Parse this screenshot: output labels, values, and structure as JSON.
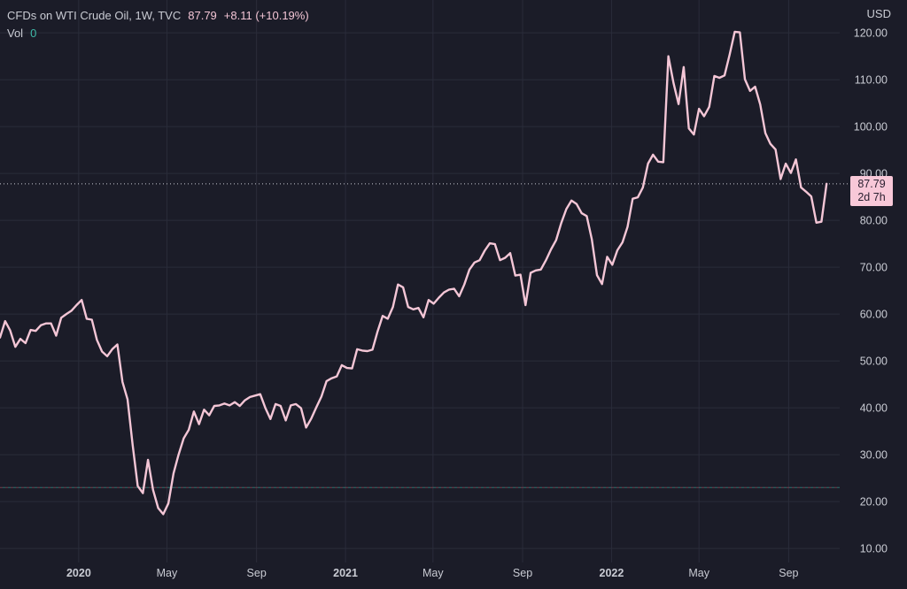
{
  "header": {
    "symbol": "CFDs on WTI Crude Oil, 1W, TVC",
    "price": "87.79",
    "change": "+8.11 (+10.19%)",
    "vol_label": "Vol",
    "vol_value": "0",
    "currency": "USD"
  },
  "price_tag": {
    "price": "87.79",
    "countdown": "2d 7h"
  },
  "colors": {
    "background": "#1b1c28",
    "line": "#f4c6d6",
    "grid": "#2a2c3a",
    "text": "#c9cbd3",
    "volume_marker": "#3fb9a8",
    "tag_bg": "#f8c8d8"
  },
  "chart_data": {
    "type": "line",
    "title": "CFDs on WTI Crude Oil, 1W, TVC",
    "xlabel": "",
    "ylabel": "USD",
    "ylim": [
      7,
      127
    ],
    "grid": true,
    "y_ticks": [
      "10.00",
      "20.00",
      "30.00",
      "40.00",
      "50.00",
      "60.00",
      "70.00",
      "80.00",
      "90.00",
      "100.00",
      "110.00",
      "120.00"
    ],
    "x_ticks": [
      {
        "label": "2020",
        "date": "2020-01-01",
        "bold": true
      },
      {
        "label": "May",
        "date": "2020-05-01",
        "bold": false
      },
      {
        "label": "Sep",
        "date": "2020-09-01",
        "bold": false
      },
      {
        "label": "2021",
        "date": "2021-01-01",
        "bold": true
      },
      {
        "label": "May",
        "date": "2021-05-01",
        "bold": false
      },
      {
        "label": "Sep",
        "date": "2021-09-01",
        "bold": false
      },
      {
        "label": "2022",
        "date": "2022-01-01",
        "bold": true
      },
      {
        "label": "May",
        "date": "2022-05-01",
        "bold": false
      },
      {
        "label": "Sep",
        "date": "2022-09-01",
        "bold": false
      }
    ],
    "x_range": [
      "2019-09-15",
      "2022-11-10"
    ],
    "series": [
      {
        "values": [
          [
            "2019-09-15",
            55.0
          ],
          [
            "2019-09-22",
            58.5
          ],
          [
            "2019-09-29",
            56.5
          ],
          [
            "2019-10-06",
            53.0
          ],
          [
            "2019-10-13",
            54.7
          ],
          [
            "2019-10-20",
            53.8
          ],
          [
            "2019-10-27",
            56.6
          ],
          [
            "2019-11-03",
            56.4
          ],
          [
            "2019-11-10",
            57.6
          ],
          [
            "2019-11-17",
            58.0
          ],
          [
            "2019-11-24",
            58.0
          ],
          [
            "2019-12-01",
            55.4
          ],
          [
            "2019-12-08",
            59.2
          ],
          [
            "2019-12-15",
            60.0
          ],
          [
            "2019-12-22",
            60.7
          ],
          [
            "2019-12-29",
            61.9
          ],
          [
            "2020-01-05",
            63.0
          ],
          [
            "2020-01-12",
            59.0
          ],
          [
            "2020-01-19",
            58.8
          ],
          [
            "2020-01-26",
            54.5
          ],
          [
            "2020-02-02",
            52.0
          ],
          [
            "2020-02-09",
            51.0
          ],
          [
            "2020-02-16",
            52.5
          ],
          [
            "2020-02-23",
            53.5
          ],
          [
            "2020-03-01",
            45.5
          ],
          [
            "2020-03-08",
            41.8
          ],
          [
            "2020-03-15",
            32.0
          ],
          [
            "2020-03-22",
            23.3
          ],
          [
            "2020-03-29",
            21.8
          ],
          [
            "2020-04-05",
            28.9
          ],
          [
            "2020-04-12",
            22.5
          ],
          [
            "2020-04-19",
            18.6
          ],
          [
            "2020-04-26",
            17.3
          ],
          [
            "2020-05-03",
            19.6
          ],
          [
            "2020-05-10",
            26.0
          ],
          [
            "2020-05-17",
            30.0
          ],
          [
            "2020-05-24",
            33.5
          ],
          [
            "2020-05-31",
            35.3
          ],
          [
            "2020-06-07",
            39.2
          ],
          [
            "2020-06-14",
            36.5
          ],
          [
            "2020-06-21",
            39.6
          ],
          [
            "2020-06-28",
            38.4
          ],
          [
            "2020-07-05",
            40.4
          ],
          [
            "2020-07-12",
            40.5
          ],
          [
            "2020-07-19",
            40.9
          ],
          [
            "2020-07-26",
            40.5
          ],
          [
            "2020-08-02",
            41.2
          ],
          [
            "2020-08-09",
            40.4
          ],
          [
            "2020-08-16",
            41.6
          ],
          [
            "2020-08-23",
            42.3
          ],
          [
            "2020-08-30",
            42.6
          ],
          [
            "2020-09-06",
            42.9
          ],
          [
            "2020-09-13",
            40.0
          ],
          [
            "2020-09-20",
            37.6
          ],
          [
            "2020-09-27",
            40.8
          ],
          [
            "2020-10-04",
            40.4
          ],
          [
            "2020-10-11",
            37.3
          ],
          [
            "2020-10-18",
            40.5
          ],
          [
            "2020-10-25",
            40.8
          ],
          [
            "2020-11-01",
            39.9
          ],
          [
            "2020-11-08",
            35.8
          ],
          [
            "2020-11-15",
            37.7
          ],
          [
            "2020-11-22",
            40.1
          ],
          [
            "2020-11-29",
            42.4
          ],
          [
            "2020-12-06",
            45.7
          ],
          [
            "2020-12-13",
            46.3
          ],
          [
            "2020-12-20",
            46.7
          ],
          [
            "2020-12-27",
            49.1
          ],
          [
            "2021-01-03",
            48.5
          ],
          [
            "2021-01-10",
            48.4
          ],
          [
            "2021-01-17",
            52.5
          ],
          [
            "2021-01-24",
            52.2
          ],
          [
            "2021-01-31",
            52.1
          ],
          [
            "2021-02-07",
            52.4
          ],
          [
            "2021-02-14",
            56.3
          ],
          [
            "2021-02-21",
            59.6
          ],
          [
            "2021-02-28",
            59.0
          ],
          [
            "2021-03-07",
            61.5
          ],
          [
            "2021-03-14",
            66.3
          ],
          [
            "2021-03-21",
            65.7
          ],
          [
            "2021-03-28",
            61.5
          ],
          [
            "2021-04-04",
            61.0
          ],
          [
            "2021-04-11",
            61.3
          ],
          [
            "2021-04-18",
            59.3
          ],
          [
            "2021-04-25",
            63.0
          ],
          [
            "2021-05-02",
            62.2
          ],
          [
            "2021-05-09",
            63.5
          ],
          [
            "2021-05-16",
            64.6
          ],
          [
            "2021-05-23",
            65.2
          ],
          [
            "2021-05-30",
            65.4
          ],
          [
            "2021-06-06",
            63.8
          ],
          [
            "2021-06-13",
            66.3
          ],
          [
            "2021-06-20",
            69.5
          ],
          [
            "2021-06-27",
            71.0
          ],
          [
            "2021-07-04",
            71.5
          ],
          [
            "2021-07-11",
            73.5
          ],
          [
            "2021-07-18",
            75.1
          ],
          [
            "2021-07-25",
            74.9
          ],
          [
            "2021-08-01",
            71.5
          ],
          [
            "2021-08-08",
            72.0
          ],
          [
            "2021-08-15",
            73.0
          ],
          [
            "2021-08-22",
            68.2
          ],
          [
            "2021-08-29",
            68.4
          ],
          [
            "2021-09-05",
            61.9
          ],
          [
            "2021-09-12",
            68.8
          ],
          [
            "2021-09-19",
            69.3
          ],
          [
            "2021-09-26",
            69.5
          ],
          [
            "2021-10-03",
            71.5
          ],
          [
            "2021-10-10",
            73.8
          ],
          [
            "2021-10-17",
            75.8
          ],
          [
            "2021-10-24",
            79.4
          ],
          [
            "2021-10-31",
            82.4
          ],
          [
            "2021-11-07",
            84.2
          ],
          [
            "2021-11-14",
            83.5
          ],
          [
            "2021-11-21",
            81.5
          ],
          [
            "2021-11-28",
            80.9
          ],
          [
            "2021-12-05",
            75.9
          ],
          [
            "2021-12-12",
            68.3
          ],
          [
            "2021-12-19",
            66.4
          ],
          [
            "2021-12-26",
            72.2
          ],
          [
            "2022-01-02",
            70.5
          ],
          [
            "2022-01-09",
            73.6
          ],
          [
            "2022-01-16",
            75.3
          ],
          [
            "2022-01-23",
            78.6
          ],
          [
            "2022-01-30",
            84.6
          ],
          [
            "2022-02-06",
            84.9
          ],
          [
            "2022-02-13",
            87.0
          ],
          [
            "2022-02-20",
            92.1
          ],
          [
            "2022-02-27",
            94.0
          ],
          [
            "2022-03-06",
            92.5
          ],
          [
            "2022-03-13",
            92.4
          ],
          [
            "2022-03-20",
            115.0
          ],
          [
            "2022-03-27",
            109.3
          ],
          [
            "2022-04-03",
            104.8
          ],
          [
            "2022-04-10",
            112.7
          ],
          [
            "2022-04-17",
            99.6
          ],
          [
            "2022-04-24",
            98.3
          ],
          [
            "2022-05-01",
            103.8
          ],
          [
            "2022-05-08",
            102.2
          ],
          [
            "2022-05-15",
            104.2
          ],
          [
            "2022-05-22",
            110.8
          ],
          [
            "2022-05-29",
            110.4
          ],
          [
            "2022-06-05",
            110.9
          ],
          [
            "2022-06-12",
            115.3
          ],
          [
            "2022-06-19",
            120.2
          ],
          [
            "2022-06-26",
            120.1
          ],
          [
            "2022-07-03",
            110.1
          ],
          [
            "2022-07-10",
            107.6
          ],
          [
            "2022-07-17",
            108.5
          ],
          [
            "2022-07-24",
            104.7
          ],
          [
            "2022-07-31",
            98.6
          ],
          [
            "2022-08-07",
            96.3
          ],
          [
            "2022-08-14",
            95.1
          ],
          [
            "2022-08-21",
            88.8
          ],
          [
            "2022-08-28",
            92.1
          ],
          [
            "2022-09-04",
            90.1
          ],
          [
            "2022-09-11",
            93.0
          ],
          [
            "2022-09-18",
            87.0
          ],
          [
            "2022-09-25",
            86.1
          ],
          [
            "2022-10-02",
            85.1
          ],
          [
            "2022-10-09",
            79.5
          ],
          [
            "2022-10-16",
            79.7
          ],
          [
            "2022-10-23",
            87.79
          ]
        ]
      }
    ],
    "last_price_line": 87.79,
    "volume_baseline": 23
  }
}
